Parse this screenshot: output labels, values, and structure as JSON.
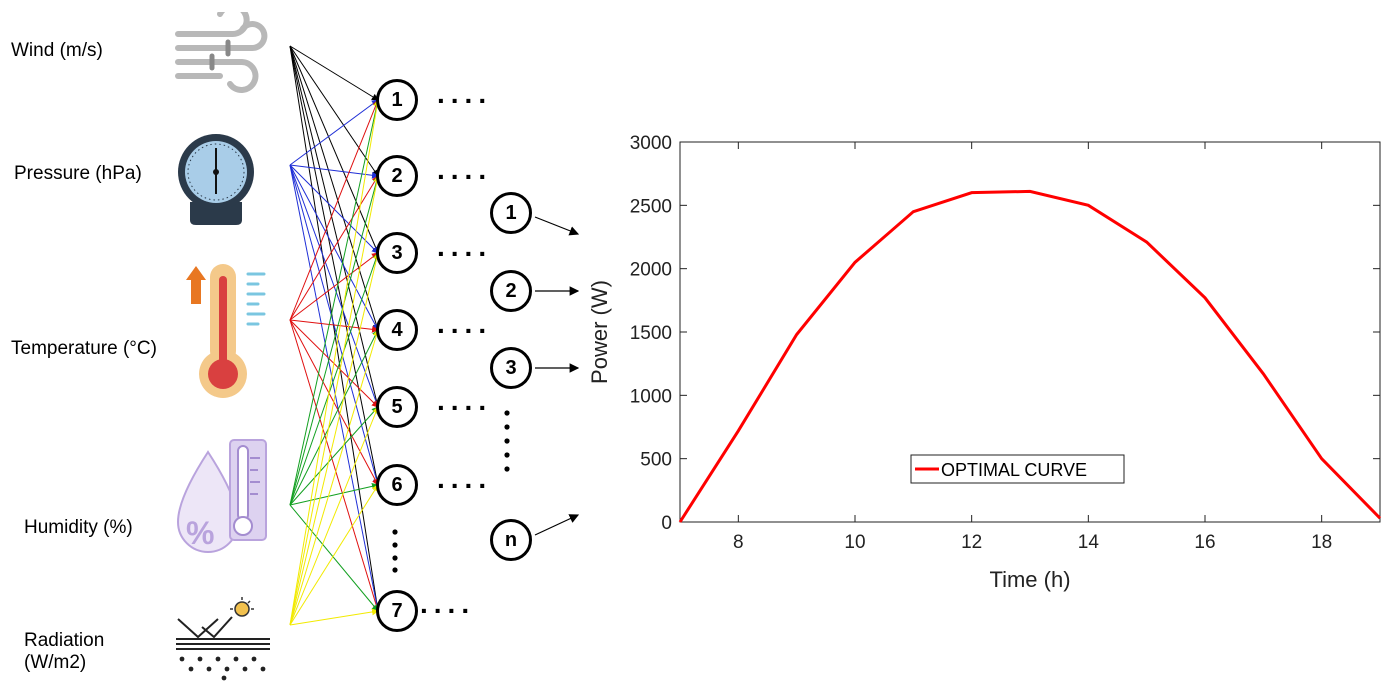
{
  "inputs": [
    {
      "label": "Wind (m/s)",
      "icon": "wind-icon"
    },
    {
      "label": "Pressure (hPa)",
      "icon": "barometer-icon"
    },
    {
      "label": "Temperature (°C)",
      "icon": "thermometer-icon"
    },
    {
      "label": "Humidity (%)",
      "icon": "humidity-icon"
    },
    {
      "label": "Radiation\n(W/m2)",
      "icon": "radiation-icon"
    }
  ],
  "hidden_nodes": [
    "1",
    "2",
    "3",
    "4",
    "5",
    "6",
    "7"
  ],
  "output_nodes": [
    "1",
    "2",
    "3",
    "n"
  ],
  "ellipsis": "....",
  "colors": {
    "wind": "#000000",
    "pressure": "#1f2fd6",
    "temperature": "#e01010",
    "humidity": "#12a020",
    "radiation": "#f2ea00",
    "curve": "#ff0000"
  },
  "chart_data": {
    "type": "line",
    "xlabel": "Time (h)",
    "ylabel": "Power (W)",
    "xlim": [
      7,
      19
    ],
    "ylim": [
      0,
      3000
    ],
    "xticks": [
      8,
      10,
      12,
      14,
      16,
      18
    ],
    "yticks": [
      0,
      500,
      1000,
      1500,
      2000,
      2500,
      3000
    ],
    "legend_position": "lower-center",
    "series": [
      {
        "name": "OPTIMAL CURVE",
        "color": "#ff0000",
        "x": [
          7,
          8,
          9,
          10,
          11,
          12,
          13,
          14,
          15,
          16,
          17,
          18,
          19
        ],
        "y": [
          0,
          720,
          1480,
          2050,
          2450,
          2600,
          2610,
          2500,
          2210,
          1770,
          1170,
          500,
          30
        ]
      }
    ]
  }
}
